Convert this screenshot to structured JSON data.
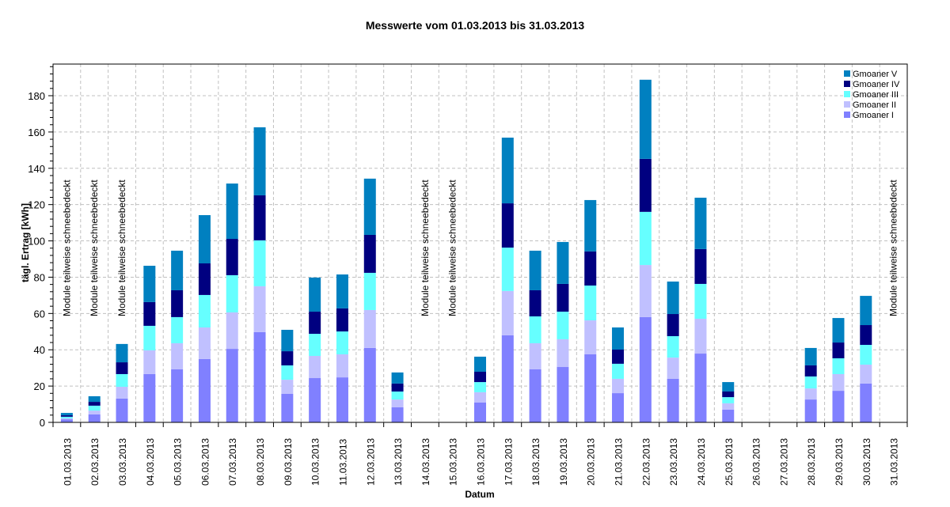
{
  "chart_data": {
    "type": "bar",
    "stacked": true,
    "title": "Messwerte vom 01.03.2013 bis 31.03.2013",
    "xlabel": "Datum",
    "ylabel": "tägl. Ertrag [kWh]",
    "ylim": [
      0,
      196
    ],
    "yticks": [
      0,
      20,
      40,
      60,
      80,
      100,
      120,
      140,
      160,
      180
    ],
    "grid": true,
    "legend_position": "top-right",
    "categories": [
      "01.03.2013",
      "02.03.2013",
      "03.03.2013",
      "04.03.2013",
      "05.03.2013",
      "06.03.2013",
      "07.03.2013",
      "08.03.2013",
      "09.03.2013",
      "10.03.2013",
      "11.03.2013",
      "12.03.2013",
      "13.03.2013",
      "14.03.2013",
      "15.03.2013",
      "16.03.2013",
      "17.03.2013",
      "18.03.2013",
      "19.03.2013",
      "20.03.2013",
      "21.03.2013",
      "22.03.2013",
      "23.03.2013",
      "24.03.2013",
      "25.03.2013",
      "26.03.2013",
      "27.03.2013",
      "28.03.2013",
      "29.03.2013",
      "30.03.2013",
      "31.03.2013"
    ],
    "series": [
      {
        "name": "Gmoaner I",
        "color": "#8080ff",
        "values": [
          1.7,
          4.4,
          13.1,
          26.6,
          29.2,
          34.9,
          40.5,
          49.7,
          15.7,
          24.4,
          24.8,
          41.0,
          8.3,
          0,
          0,
          10.9,
          48.0,
          29.2,
          30.5,
          37.5,
          16.1,
          58.0,
          24.0,
          37.9,
          7.0,
          0,
          0,
          12.6,
          17.4,
          21.4,
          0
        ]
      },
      {
        "name": "Gmoaner II",
        "color": "#c0c0ff",
        "values": [
          0.5,
          2.1,
          6.5,
          13.1,
          14.4,
          17.4,
          20.1,
          25.3,
          7.8,
          12.2,
          12.7,
          20.9,
          4.3,
          0,
          0,
          5.7,
          24.4,
          14.4,
          15.3,
          18.7,
          7.9,
          28.7,
          11.7,
          19.2,
          3.5,
          0,
          0,
          6.1,
          9.2,
          10.4,
          0
        ]
      },
      {
        "name": "Gmoaner III",
        "color": "#66ffff",
        "values": [
          0.9,
          2.7,
          7.0,
          13.5,
          14.4,
          17.9,
          20.5,
          25.3,
          7.9,
          12.2,
          12.6,
          20.5,
          4.4,
          0,
          0,
          5.6,
          23.9,
          14.8,
          15.2,
          19.2,
          8.3,
          29.3,
          11.8,
          19.2,
          3.4,
          0,
          0,
          6.6,
          8.7,
          10.9,
          0
        ]
      },
      {
        "name": "Gmoaner IV",
        "color": "#000080",
        "values": [
          0.8,
          2.1,
          6.5,
          13.1,
          14.8,
          17.4,
          20.0,
          24.8,
          7.8,
          12.2,
          12.7,
          20.9,
          4.4,
          0,
          0,
          5.7,
          24.4,
          14.4,
          15.3,
          18.8,
          7.8,
          29.2,
          12.2,
          19.2,
          3.1,
          0,
          0,
          6.1,
          8.7,
          10.9,
          0
        ]
      },
      {
        "name": "Gmoaner V",
        "color": "#0080c0",
        "values": [
          1.3,
          3.1,
          10.1,
          20.0,
          21.8,
          26.6,
          30.5,
          37.5,
          11.8,
          18.8,
          18.7,
          31.0,
          6.1,
          0,
          0,
          8.3,
          36.2,
          21.8,
          23.1,
          28.3,
          12.2,
          43.6,
          17.9,
          28.3,
          5.2,
          0,
          0,
          9.6,
          13.5,
          16.1,
          0
        ]
      }
    ],
    "totals": [
      5.2,
      14.4,
      43.2,
      86.3,
      94.6,
      114.2,
      131.6,
      162.6,
      51.0,
      79.8,
      81.5,
      134.3,
      27.5,
      0,
      0,
      36.2,
      156.9,
      94.6,
      99.4,
      122.5,
      52.3,
      188.8,
      77.6,
      123.8,
      22.2,
      0,
      0,
      41.0,
      57.5,
      69.7,
      0
    ],
    "annotations": [
      {
        "index": 0,
        "text": "Module teilweise schneebedeckt"
      },
      {
        "index": 1,
        "text": "Module teilweise schneebedeckt"
      },
      {
        "index": 2,
        "text": "Module teilweise schneebedeckt"
      },
      {
        "index": 13,
        "text": "Module teilweise schneebedeckt"
      },
      {
        "index": 14,
        "text": "Module teilweise schneebedeckt"
      },
      {
        "index": 30,
        "text": "Module teilweise schneebedeckt"
      }
    ],
    "legend_order": [
      "Gmoaner V",
      "Gmoaner IV",
      "Gmoaner III",
      "Gmoaner II",
      "Gmoaner I"
    ]
  }
}
